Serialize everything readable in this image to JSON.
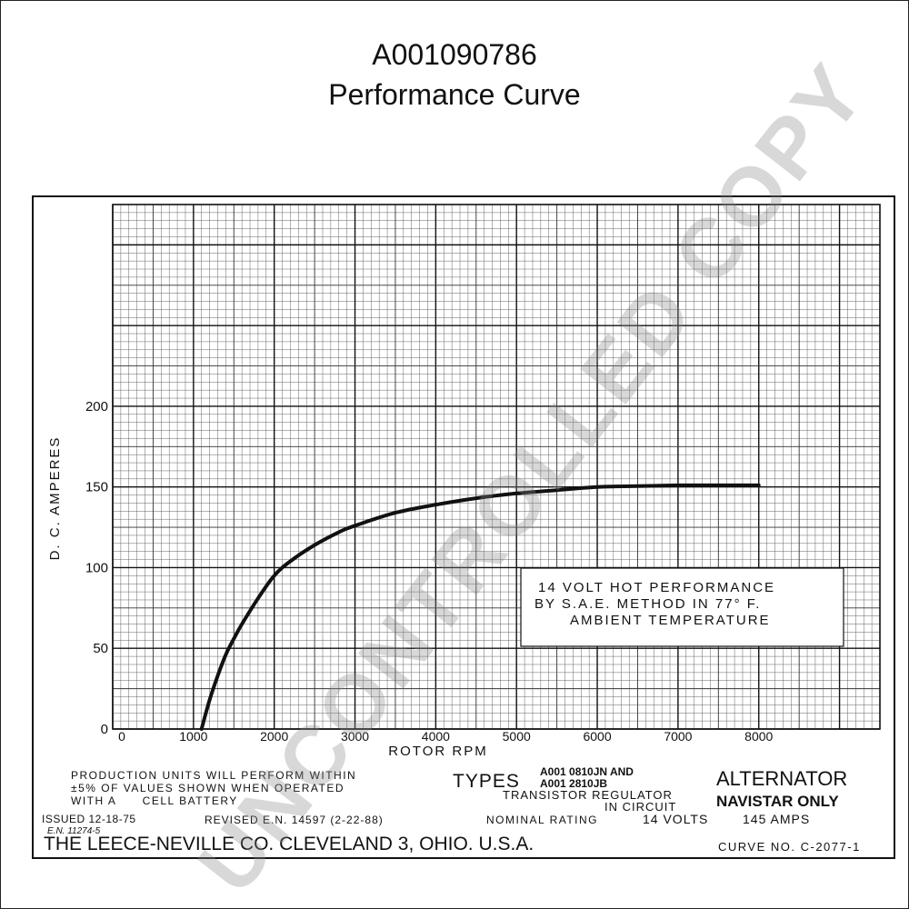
{
  "header": {
    "part_number": "A001090786",
    "subtitle": "Performance Curve"
  },
  "chart_data": {
    "type": "line",
    "xlabel": "ROTOR RPM",
    "ylabel": "D. C. AMPERES",
    "xlim": [
      0,
      9500
    ],
    "ylim": [
      0,
      325
    ],
    "grid": true,
    "x_tick_labels": [
      "0",
      "1000",
      "2000",
      "3000",
      "4000",
      "5000",
      "6000",
      "7000",
      "8000"
    ],
    "x_ticks": [
      0,
      1000,
      2000,
      3000,
      4000,
      5000,
      6000,
      7000,
      8000
    ],
    "y_tick_labels": [
      "0",
      "50",
      "100",
      "150",
      "200"
    ],
    "y_ticks": [
      0,
      50,
      100,
      150,
      200
    ],
    "series": [
      {
        "x": [
          1100,
          1200,
          1300,
          1400,
          1500,
          1600,
          1800,
          2000,
          2200,
          2500,
          2800,
          3000,
          3500,
          4000,
          4500,
          5000,
          5500,
          6000,
          6500,
          7000,
          7500,
          8000
        ],
        "values": [
          0,
          18,
          33,
          46,
          56,
          65,
          81,
          95,
          104,
          114,
          122,
          126,
          134,
          139,
          143,
          146,
          148,
          150,
          150.5,
          151,
          151,
          151
        ]
      }
    ],
    "annotation": [
      "14 VOLT HOT PERFORMANCE",
      "BY S.A.E. METHOD IN 77° F.",
      "AMBIENT TEMPERATURE"
    ]
  },
  "footer": {
    "production_note": [
      "PRODUCTION UNITS WILL PERFORM WITHIN",
      "±5% OF VALUES SHOWN WHEN OPERATED",
      "WITH A      CELL BATTERY"
    ],
    "types_label": "TYPES",
    "type_codes": [
      "A001 0810JN AND",
      "A001 2810JB"
    ],
    "regulator": [
      "TRANSISTOR REGULATOR",
      "IN CIRCUIT"
    ],
    "product": "ALTERNATOR",
    "product_note": "NAVISTAR ONLY",
    "issued": "ISSUED 12-18-75",
    "en": "E.N. 11274-5",
    "revised": "REVISED E.N. 14597 (2-22-88)",
    "nominal_label": "NOMINAL RATING",
    "nominal_volts": "14 VOLTS",
    "nominal_amps": "145 AMPS",
    "company": "THE LEECE-NEVILLE CO. CLEVELAND 3, OHIO. U.S.A.",
    "curve_no": "CURVE NO. C-2077-1"
  },
  "watermark": "UNCONTROLLED COPY"
}
